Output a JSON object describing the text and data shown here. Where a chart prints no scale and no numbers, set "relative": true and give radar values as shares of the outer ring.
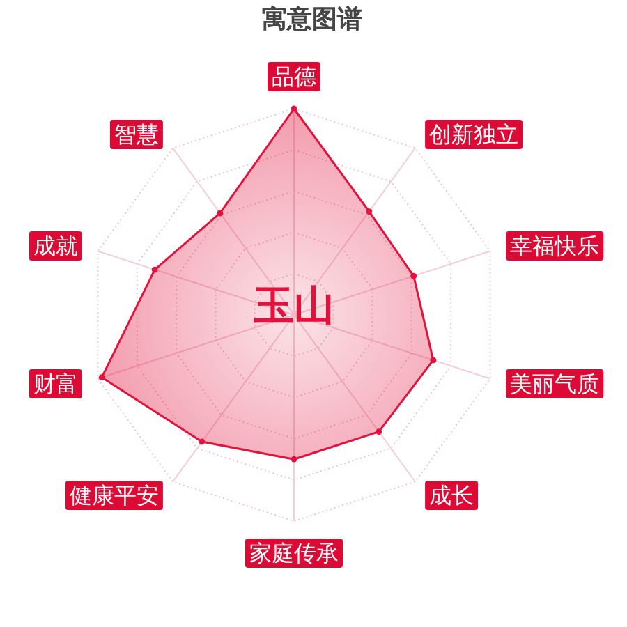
{
  "chart_data": {
    "type": "radar",
    "title": "寓意图谱",
    "categories": [
      "品德",
      "创新独立",
      "幸福快乐",
      "美丽气质",
      "成长",
      "家庭传承",
      "健康平安",
      "财富",
      "成就",
      "智慧"
    ],
    "series": [
      {
        "color": "#e2123c",
        "values": [
          1.0,
          0.62,
          0.61,
          0.71,
          0.7,
          0.7,
          0.76,
          0.98,
          0.71,
          0.61
        ]
      }
    ],
    "relative": true,
    "grid": true,
    "marker": "circle",
    "annotations": [
      "玉山"
    ]
  }
}
